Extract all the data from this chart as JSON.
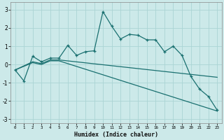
{
  "xlabel": "Humidex (Indice chaleur)",
  "xlim": [
    -0.5,
    23.5
  ],
  "ylim": [
    -3.2,
    3.4
  ],
  "xticks": [
    0,
    1,
    2,
    3,
    4,
    5,
    6,
    7,
    8,
    9,
    10,
    11,
    12,
    13,
    14,
    15,
    16,
    17,
    18,
    19,
    20,
    21,
    22,
    23
  ],
  "yticks": [
    -3,
    -2,
    -1,
    0,
    1,
    2,
    3
  ],
  "bg_color": "#cce9e9",
  "grid_color": "#aad4d4",
  "line_color": "#1a7070",
  "line1_x": [
    0,
    1,
    2,
    3,
    4,
    5,
    6,
    7,
    8,
    9,
    10,
    11,
    12,
    13,
    14,
    15,
    16,
    17,
    18,
    19,
    20,
    21,
    22,
    23
  ],
  "line1_y": [
    -0.3,
    -0.9,
    0.45,
    0.15,
    0.35,
    0.35,
    1.05,
    0.5,
    0.7,
    0.75,
    2.9,
    2.1,
    1.4,
    1.65,
    1.6,
    1.35,
    1.35,
    0.7,
    1.0,
    0.5,
    -0.65,
    -1.35,
    -1.75,
    -2.5
  ],
  "line2_x": [
    0,
    2,
    3,
    4,
    5,
    23
  ],
  "line2_y": [
    -0.3,
    0.15,
    0.05,
    0.25,
    0.25,
    -0.7
  ],
  "line3_x": [
    0,
    2,
    3,
    4,
    5,
    23
  ],
  "line3_y": [
    -0.3,
    0.1,
    0.0,
    0.2,
    0.2,
    -2.55
  ],
  "figsize": [
    3.2,
    2.0
  ],
  "dpi": 100
}
